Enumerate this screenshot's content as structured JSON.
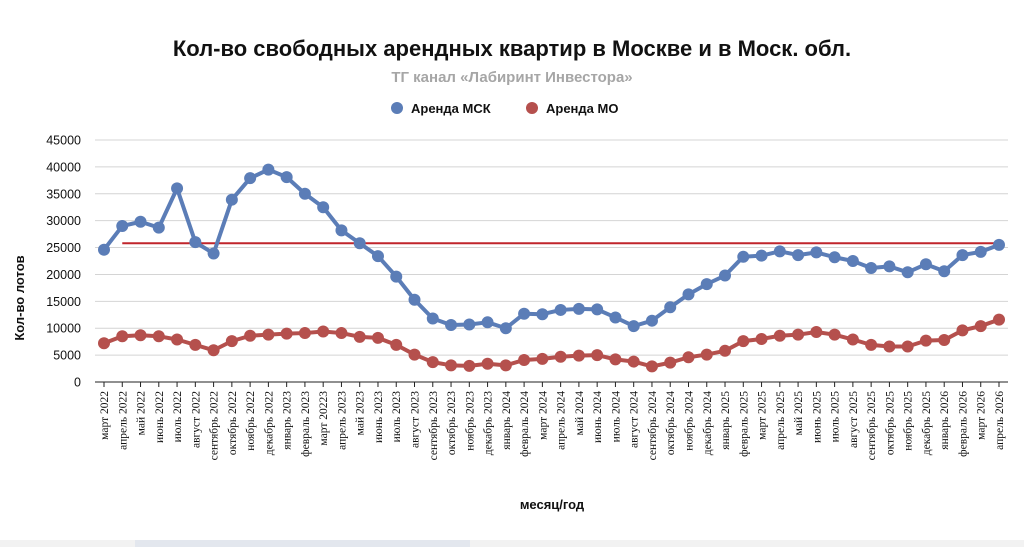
{
  "chart_data": {
    "type": "line",
    "title": "Кол-во свободных арендных квартир в Москве и в Моск. обл.",
    "subtitle": "ТГ канал «Лабиринт Инвестора»",
    "xlabel": "месяц/год",
    "ylabel": "Кол-во лотов",
    "ylim": [
      0,
      45000
    ],
    "yticks": [
      0,
      5000,
      10000,
      15000,
      20000,
      25000,
      30000,
      35000,
      40000,
      45000
    ],
    "grid": "horizontal",
    "legend_position": "top-center",
    "categories": [
      "март 2022",
      "апрель 2022",
      "май 2022",
      "июнь 2022",
      "июль 2022",
      "август 2022",
      "сентябрь 2022",
      "октябрь 2022",
      "ноябрь 2022",
      "декабрь 2022",
      "январь 2023",
      "февраль 2023",
      "март 20223",
      "апрель 2023",
      "май 2023",
      "июнь 2023",
      "июль 2023",
      "август 2023",
      "сентябрь 2023",
      "октябрь 2023",
      "ноябрь 2023",
      "декабрь 2023",
      "январь 2024",
      "февраль 2024",
      "март 2024",
      "апрель 2024",
      "май 2024",
      "июнь 2024",
      "июль 2024",
      "август 2024",
      "сентябрь 2024",
      "октябрь 2024",
      "ноябрь 2024",
      "декабрь 2024",
      "январь 2025",
      "февраль 2025",
      "март 2025",
      "апрель 2025",
      "май 2025",
      "июнь 2025",
      "июль 2025",
      "август 2025",
      "сентябрь 2025",
      "октябрь 2025",
      "ноябрь 2025",
      "декабрь 2025",
      "январь 2026",
      "февраль 2026",
      "март 2026",
      "апрель 2026"
    ],
    "series": [
      {
        "name": "Аренда МСК",
        "color": "#5b7db7",
        "values": [
          24600,
          29000,
          29800,
          28700,
          36000,
          26000,
          23900,
          33900,
          37900,
          39500,
          38100,
          35000,
          32500,
          28200,
          25800,
          23400,
          19600,
          15300,
          11800,
          10600,
          10700,
          11100,
          10000,
          12700,
          12600,
          13400,
          13600,
          13500,
          12000,
          10400,
          11400,
          13900,
          16300,
          18200,
          19800,
          23300,
          23500,
          24300,
          23600,
          24100,
          23200,
          22500,
          21200,
          21500,
          20400,
          21900,
          20600,
          23600,
          24200,
          25500
        ]
      },
      {
        "name": "Аренда МО",
        "color": "#b5504d",
        "values": [
          7200,
          8500,
          8700,
          8500,
          7900,
          6900,
          5900,
          7600,
          8600,
          8800,
          9000,
          9100,
          9400,
          9100,
          8400,
          8200,
          6900,
          5100,
          3700,
          3100,
          3000,
          3400,
          3100,
          4100,
          4300,
          4700,
          4900,
          5000,
          4200,
          3800,
          2900,
          3600,
          4600,
          5100,
          5800,
          7600,
          8000,
          8600,
          8800,
          9300,
          8800,
          7900,
          6900,
          6600,
          6600,
          7700,
          7800,
          9600,
          10400,
          11600
        ]
      }
    ],
    "reference_line": {
      "value": 25800,
      "color": "#c0252b",
      "from_index": 1,
      "to_index": 49
    }
  }
}
